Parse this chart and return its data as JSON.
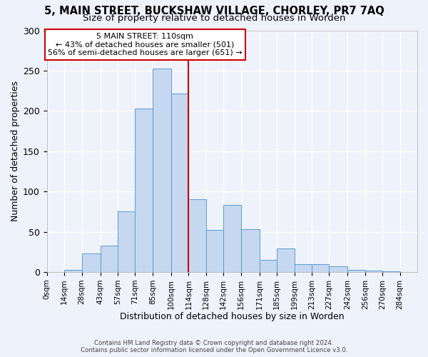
{
  "title": "5, MAIN STREET, BUCKSHAW VILLAGE, CHORLEY, PR7 7AQ",
  "subtitle": "Size of property relative to detached houses in Worden",
  "xlabel": "Distribution of detached houses by size in Worden",
  "ylabel": "Number of detached properties",
  "bin_labels": [
    "0sqm",
    "14sqm",
    "28sqm",
    "43sqm",
    "57sqm",
    "71sqm",
    "85sqm",
    "100sqm",
    "114sqm",
    "128sqm",
    "142sqm",
    "156sqm",
    "171sqm",
    "185sqm",
    "199sqm",
    "213sqm",
    "227sqm",
    "242sqm",
    "256sqm",
    "270sqm",
    "284sqm"
  ],
  "bin_edges": [
    0,
    14,
    28,
    43,
    57,
    71,
    85,
    100,
    114,
    128,
    142,
    156,
    171,
    185,
    199,
    213,
    227,
    242,
    256,
    270,
    284,
    298
  ],
  "bar_heights": [
    0,
    3,
    23,
    33,
    75,
    203,
    253,
    222,
    90,
    52,
    83,
    53,
    15,
    29,
    10,
    10,
    7,
    3,
    2,
    1,
    0
  ],
  "bar_color": "#c5d8f0",
  "bar_edge_color": "#5b9bd5",
  "vline_x": 114,
  "vline_color": "#cc0000",
  "annotation_title": "5 MAIN STREET: 110sqm",
  "annotation_line1": "← 43% of detached houses are smaller (501)",
  "annotation_line2": "56% of semi-detached houses are larger (651) →",
  "annotation_box_color": "#cc0000",
  "annotation_bg": "#ffffff",
  "ylim": [
    0,
    300
  ],
  "yticks": [
    0,
    50,
    100,
    150,
    200,
    250,
    300
  ],
  "footer1": "Contains HM Land Registry data © Crown copyright and database right 2024.",
  "footer2": "Contains public sector information licensed under the Open Government Licence v3.0.",
  "background_color": "#eef2fa",
  "grid_color": "#ffffff",
  "title_fontsize": 10.5,
  "subtitle_fontsize": 9.5
}
